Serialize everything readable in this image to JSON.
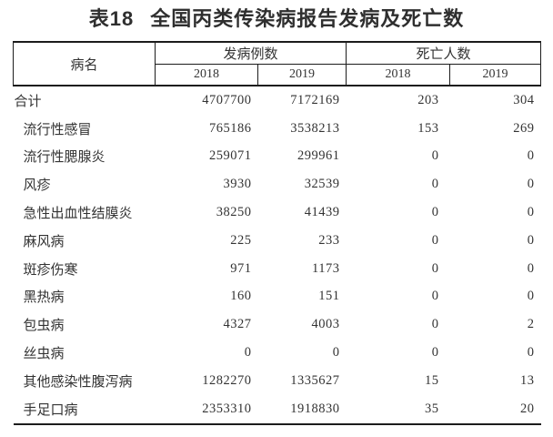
{
  "title": {
    "number": "表18",
    "text": "全国丙类传染病报告发病及死亡数"
  },
  "table": {
    "headers": {
      "disease": "病名",
      "cases_group": "发病例数",
      "deaths_group": "死亡人数",
      "cases_years": [
        "2018",
        "2019"
      ],
      "deaths_years": [
        "2018",
        "2019"
      ]
    },
    "rows": [
      {
        "name": "合计",
        "is_total": true,
        "values": [
          "4707700",
          "7172169",
          "203",
          "304"
        ]
      },
      {
        "name": "流行性感冒",
        "is_total": false,
        "values": [
          "765186",
          "3538213",
          "153",
          "269"
        ]
      },
      {
        "name": "流行性腮腺炎",
        "is_total": false,
        "values": [
          "259071",
          "299961",
          "0",
          "0"
        ]
      },
      {
        "name": "风疹",
        "is_total": false,
        "values": [
          "3930",
          "32539",
          "0",
          "0"
        ]
      },
      {
        "name": "急性出血性结膜炎",
        "is_total": false,
        "values": [
          "38250",
          "41439",
          "0",
          "0"
        ]
      },
      {
        "name": "麻风病",
        "is_total": false,
        "values": [
          "225",
          "233",
          "0",
          "0"
        ]
      },
      {
        "name": "斑疹伤寒",
        "is_total": false,
        "values": [
          "971",
          "1173",
          "0",
          "0"
        ]
      },
      {
        "name": "黑热病",
        "is_total": false,
        "values": [
          "160",
          "151",
          "0",
          "0"
        ]
      },
      {
        "name": "包虫病",
        "is_total": false,
        "values": [
          "4327",
          "4003",
          "0",
          "2"
        ]
      },
      {
        "name": "丝虫病",
        "is_total": false,
        "values": [
          "0",
          "0",
          "0",
          "0"
        ]
      },
      {
        "name": "其他感染性腹泻病",
        "is_total": false,
        "values": [
          "1282270",
          "1335627",
          "15",
          "13"
        ]
      },
      {
        "name": "手足口病",
        "is_total": false,
        "values": [
          "2353310",
          "1918830",
          "35",
          "20"
        ]
      }
    ]
  },
  "colors": {
    "text": "#333333",
    "border": "#1c1c1c",
    "background": "#ffffff"
  }
}
